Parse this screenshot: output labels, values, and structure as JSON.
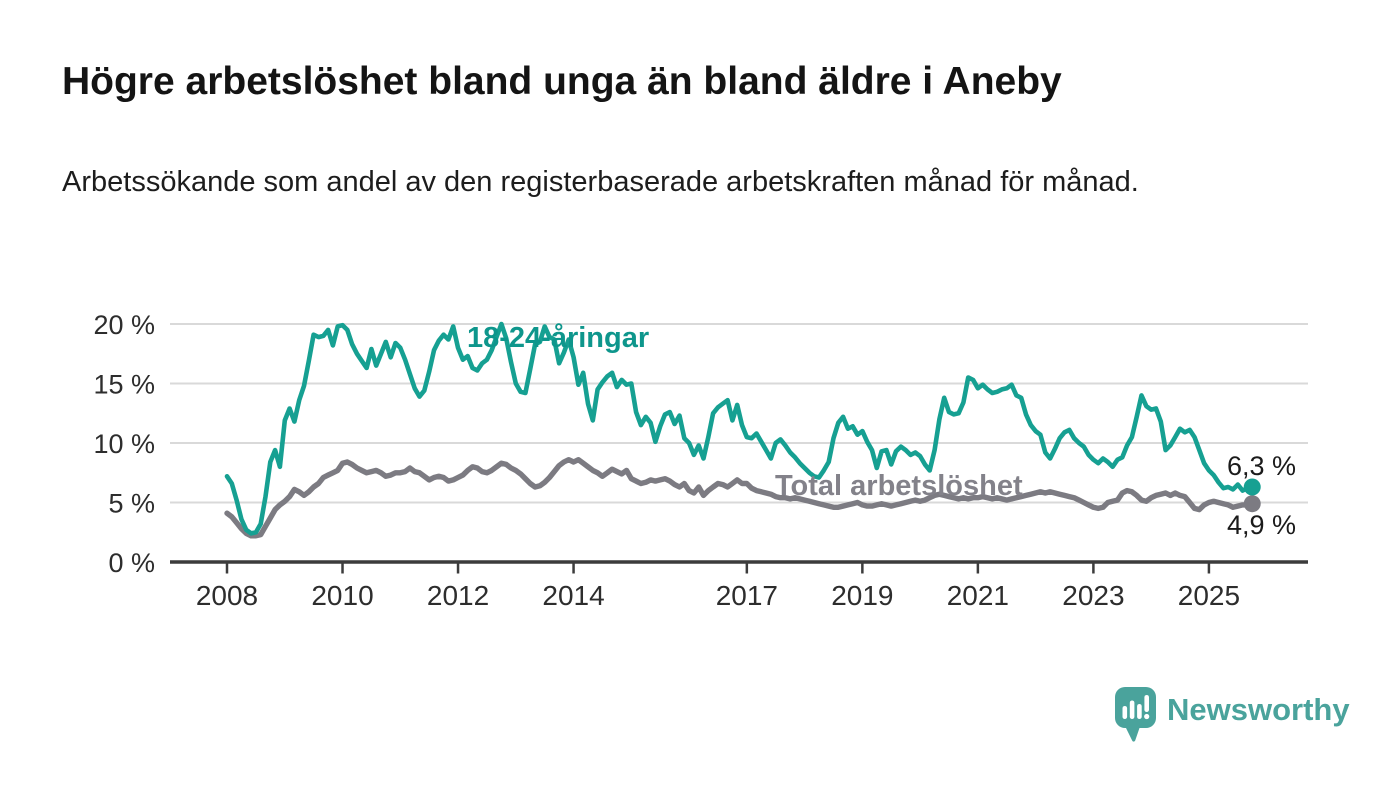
{
  "title": "Högre arbetslöshet bland unga än bland äldre i Aneby",
  "subtitle": "Arbetssökande som andel av den registerbaserade arbetskraften månad för månad.",
  "branding": {
    "logo_text": "Newsworthy"
  },
  "colors": {
    "young_line": "#16a092",
    "young_label": "#0e968c",
    "total_line": "#7c7b82",
    "total_label": "#83828a",
    "grid": "#d9d9d9",
    "axis": "#3c3c3c",
    "axis_text": "#2d2d2d",
    "text": "#1b1b1b",
    "logo": "#4aa39c"
  },
  "chart_data": {
    "type": "line",
    "title": "Högre arbetslöshet bland unga än bland äldre i Aneby",
    "subtitle": "Arbetssökande som andel av den registerbaserade arbetskraften månad för månad.",
    "unit": "%",
    "interval": "monthly",
    "x_start": "2008-01",
    "x_end": "2025-10",
    "grid": true,
    "legend": "inline-labels",
    "ylim": [
      0,
      20
    ],
    "yticks": [
      {
        "value": 0,
        "label": "0 %"
      },
      {
        "value": 5,
        "label": "5 %"
      },
      {
        "value": 10,
        "label": "10 %"
      },
      {
        "value": 15,
        "label": "15 %"
      },
      {
        "value": 20,
        "label": "20 %"
      }
    ],
    "xticks": [
      2008,
      2010,
      2012,
      2014,
      2017,
      2019,
      2021,
      2023,
      2025
    ],
    "series": [
      {
        "name": "18-24-åringar",
        "color": "#16a092",
        "end_label": "6,3 %",
        "end_value": 6.3,
        "values": [
          7.2,
          6.6,
          5.2,
          3.6,
          2.7,
          2.4,
          2.5,
          3.2,
          5.5,
          8.4,
          9.4,
          8.0,
          11.9,
          12.9,
          11.8,
          13.6,
          14.8,
          16.9,
          19.1,
          18.9,
          19.0,
          19.5,
          18.2,
          19.8,
          19.9,
          19.5,
          18.3,
          17.5,
          16.9,
          16.3,
          17.9,
          16.5,
          17.5,
          18.5,
          17.2,
          18.4,
          18.0,
          17.0,
          15.8,
          14.6,
          13.9,
          14.4,
          16.0,
          17.8,
          18.6,
          19.1,
          18.7,
          19.8,
          18.0,
          17.0,
          17.3,
          16.3,
          16.1,
          16.7,
          17.0,
          17.8,
          18.9,
          20.0,
          18.8,
          16.8,
          15.0,
          14.3,
          14.2,
          16.2,
          18.3,
          18.5,
          19.8,
          18.9,
          18.7,
          16.7,
          17.6,
          18.7,
          17.2,
          14.9,
          15.9,
          13.3,
          11.9,
          14.5,
          15.1,
          15.6,
          15.9,
          14.7,
          15.3,
          14.9,
          15.0,
          12.6,
          11.5,
          12.2,
          11.7,
          10.1,
          11.4,
          12.4,
          12.6,
          11.6,
          12.3,
          10.4,
          10.0,
          9.0,
          9.8,
          8.7,
          10.5,
          12.5,
          13.0,
          13.3,
          13.6,
          11.9,
          13.2,
          11.5,
          10.5,
          10.4,
          10.8,
          10.1,
          9.4,
          8.7,
          10.0,
          10.3,
          9.8,
          9.2,
          8.8,
          8.3,
          7.9,
          7.5,
          7.2,
          7.1,
          7.7,
          8.4,
          10.4,
          11.7,
          12.2,
          11.2,
          11.4,
          10.7,
          11.0,
          10.1,
          9.4,
          7.9,
          9.3,
          9.4,
          8.2,
          9.3,
          9.7,
          9.4,
          9.0,
          9.2,
          8.9,
          8.2,
          7.7,
          9.4,
          12.0,
          13.8,
          12.6,
          12.4,
          12.5,
          13.4,
          15.5,
          15.3,
          14.6,
          14.9,
          14.5,
          14.2,
          14.3,
          14.5,
          14.6,
          14.9,
          14.0,
          13.8,
          12.4,
          11.5,
          11.0,
          10.7,
          9.2,
          8.7,
          9.5,
          10.4,
          10.9,
          11.1,
          10.4,
          10.0,
          9.7,
          9.0,
          8.6,
          8.3,
          8.7,
          8.4,
          8.0,
          8.6,
          8.8,
          9.8,
          10.5,
          12.2,
          14.0,
          13.1,
          12.8,
          12.9,
          11.8,
          9.4,
          9.8,
          10.5,
          11.2,
          10.9,
          11.1,
          10.5,
          9.4,
          8.3,
          7.7,
          7.3,
          6.7,
          6.2,
          6.3,
          6.1,
          6.5,
          6.0,
          6.2,
          6.3
        ]
      },
      {
        "name": "Total arbetslöshet",
        "color": "#7c7b82",
        "end_label": "4,9 %",
        "end_value": 4.9,
        "values": [
          4.1,
          3.8,
          3.3,
          2.8,
          2.4,
          2.2,
          2.2,
          2.3,
          3.0,
          3.7,
          4.4,
          4.8,
          5.1,
          5.5,
          6.1,
          5.9,
          5.6,
          5.9,
          6.3,
          6.6,
          7.1,
          7.3,
          7.5,
          7.7,
          8.3,
          8.4,
          8.2,
          7.9,
          7.7,
          7.5,
          7.6,
          7.7,
          7.5,
          7.2,
          7.3,
          7.5,
          7.5,
          7.6,
          7.9,
          7.6,
          7.5,
          7.2,
          6.9,
          7.1,
          7.2,
          7.1,
          6.8,
          6.9,
          7.1,
          7.3,
          7.7,
          8.0,
          7.9,
          7.6,
          7.5,
          7.7,
          8.0,
          8.3,
          8.2,
          7.9,
          7.7,
          7.4,
          7.0,
          6.6,
          6.3,
          6.4,
          6.7,
          7.1,
          7.6,
          8.1,
          8.4,
          8.6,
          8.4,
          8.6,
          8.3,
          8.0,
          7.7,
          7.5,
          7.2,
          7.5,
          7.8,
          7.6,
          7.4,
          7.7,
          7.0,
          6.8,
          6.6,
          6.7,
          6.9,
          6.8,
          6.9,
          7.0,
          6.8,
          6.5,
          6.3,
          6.6,
          6.0,
          5.8,
          6.3,
          5.6,
          6.0,
          6.3,
          6.6,
          6.5,
          6.3,
          6.6,
          6.9,
          6.6,
          6.6,
          6.2,
          6.0,
          5.9,
          5.8,
          5.7,
          5.5,
          5.4,
          5.4,
          5.3,
          5.4,
          5.3,
          5.2,
          5.1,
          5.0,
          4.9,
          4.8,
          4.7,
          4.6,
          4.6,
          4.7,
          4.8,
          4.9,
          5.0,
          4.8,
          4.7,
          4.7,
          4.8,
          4.9,
          4.8,
          4.7,
          4.8,
          4.9,
          5.0,
          5.1,
          5.2,
          5.1,
          5.2,
          5.4,
          5.6,
          5.7,
          5.6,
          5.5,
          5.4,
          5.3,
          5.4,
          5.3,
          5.4,
          5.4,
          5.5,
          5.4,
          5.3,
          5.4,
          5.3,
          5.2,
          5.3,
          5.4,
          5.5,
          5.6,
          5.7,
          5.8,
          5.9,
          5.8,
          5.9,
          5.8,
          5.7,
          5.6,
          5.5,
          5.4,
          5.2,
          5.0,
          4.8,
          4.6,
          4.5,
          4.6,
          5.0,
          5.1,
          5.2,
          5.8,
          6.0,
          5.9,
          5.6,
          5.2,
          5.1,
          5.4,
          5.6,
          5.7,
          5.8,
          5.6,
          5.8,
          5.6,
          5.5,
          5.0,
          4.5,
          4.4,
          4.8,
          5.0,
          5.1,
          5.0,
          4.9,
          4.8,
          4.6,
          4.7,
          4.8,
          4.8,
          4.9
        ]
      }
    ]
  }
}
